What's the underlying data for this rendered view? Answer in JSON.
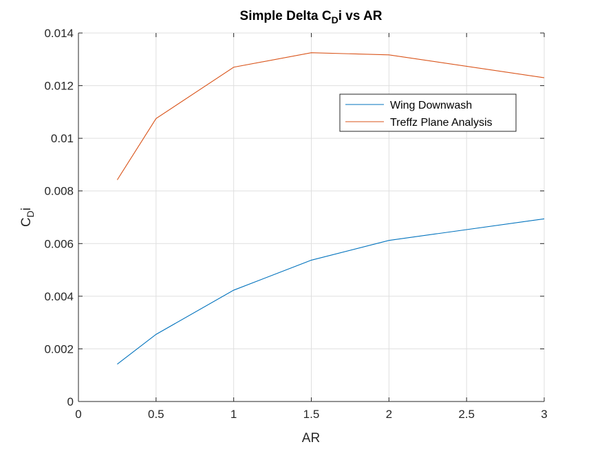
{
  "chart_data": {
    "type": "line",
    "title": {
      "main": "Simple Delta C",
      "subscript": "D",
      "rest": "i vs AR"
    },
    "xlabel": "AR",
    "ylabel": {
      "main": "C",
      "subscript": "D",
      "rest": "i"
    },
    "xlim": [
      0,
      3
    ],
    "ylim": [
      0,
      0.014
    ],
    "grid": true,
    "legend_position": "top-right",
    "x_ticks": [
      0,
      0.5,
      1,
      1.5,
      2,
      2.5,
      3
    ],
    "x_tick_labels": [
      "0",
      "0.5",
      "1",
      "1.5",
      "2",
      "2.5",
      "3"
    ],
    "y_ticks": [
      0,
      0.002,
      0.004,
      0.006,
      0.008,
      0.01,
      0.012,
      0.014
    ],
    "y_tick_labels": [
      "0",
      "0.002",
      "0.004",
      "0.006",
      "0.008",
      "0.01",
      "0.012",
      "0.014"
    ],
    "x": [
      0.25,
      0.5,
      1,
      1.5,
      2,
      3
    ],
    "series": [
      {
        "name": "Wing Downwash",
        "color": "#0072BD",
        "values": [
          0.00142,
          0.00255,
          0.00423,
          0.00537,
          0.00612,
          0.00694
        ]
      },
      {
        "name": "Treffz Plane Analysis",
        "color": "#D95319",
        "values": [
          0.00842,
          0.01075,
          0.0127,
          0.01325,
          0.01317,
          0.0123
        ]
      }
    ]
  }
}
